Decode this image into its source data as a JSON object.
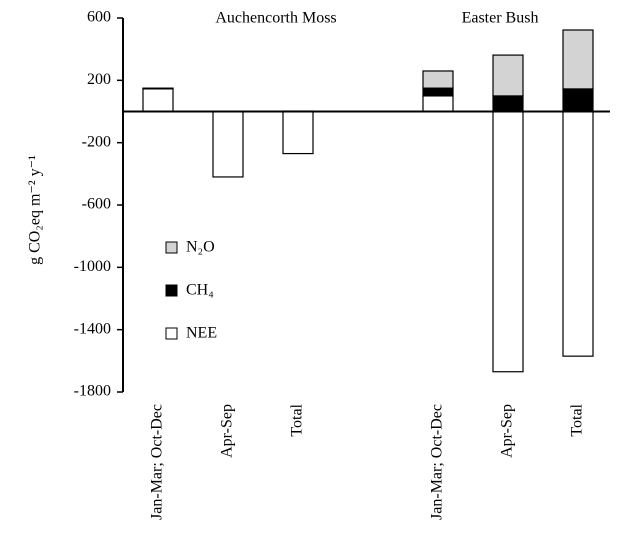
{
  "chart_data": {
    "type": "stacked_bar",
    "y_label": "g CO₂eq m⁻² y⁻¹",
    "group_labels": [
      "Auchencorth Moss",
      "Easter Bush"
    ],
    "categories": [
      "Jan-Mar; Oct-Dec",
      "Apr-Sep",
      "Total",
      null,
      "Jan-Mar; Oct-Dec",
      "Apr-Sep",
      "Total"
    ],
    "series": [
      {
        "name": "NEE",
        "color": "#ffffff",
        "values": [
          145,
          -420,
          -270,
          null,
          100,
          -1670,
          -1570
        ]
      },
      {
        "name": "CH₄",
        "color": "#000000",
        "values": [
          5,
          2,
          3,
          null,
          50,
          100,
          145
        ]
      },
      {
        "name": "N₂O",
        "color": "#d3d3d3",
        "values": [
          0,
          0,
          0,
          null,
          110,
          262,
          378
        ]
      }
    ],
    "ylim": [
      -1800,
      600
    ],
    "yticks": [
      600,
      200,
      -200,
      -600,
      -1000,
      -1400,
      -1800
    ]
  }
}
